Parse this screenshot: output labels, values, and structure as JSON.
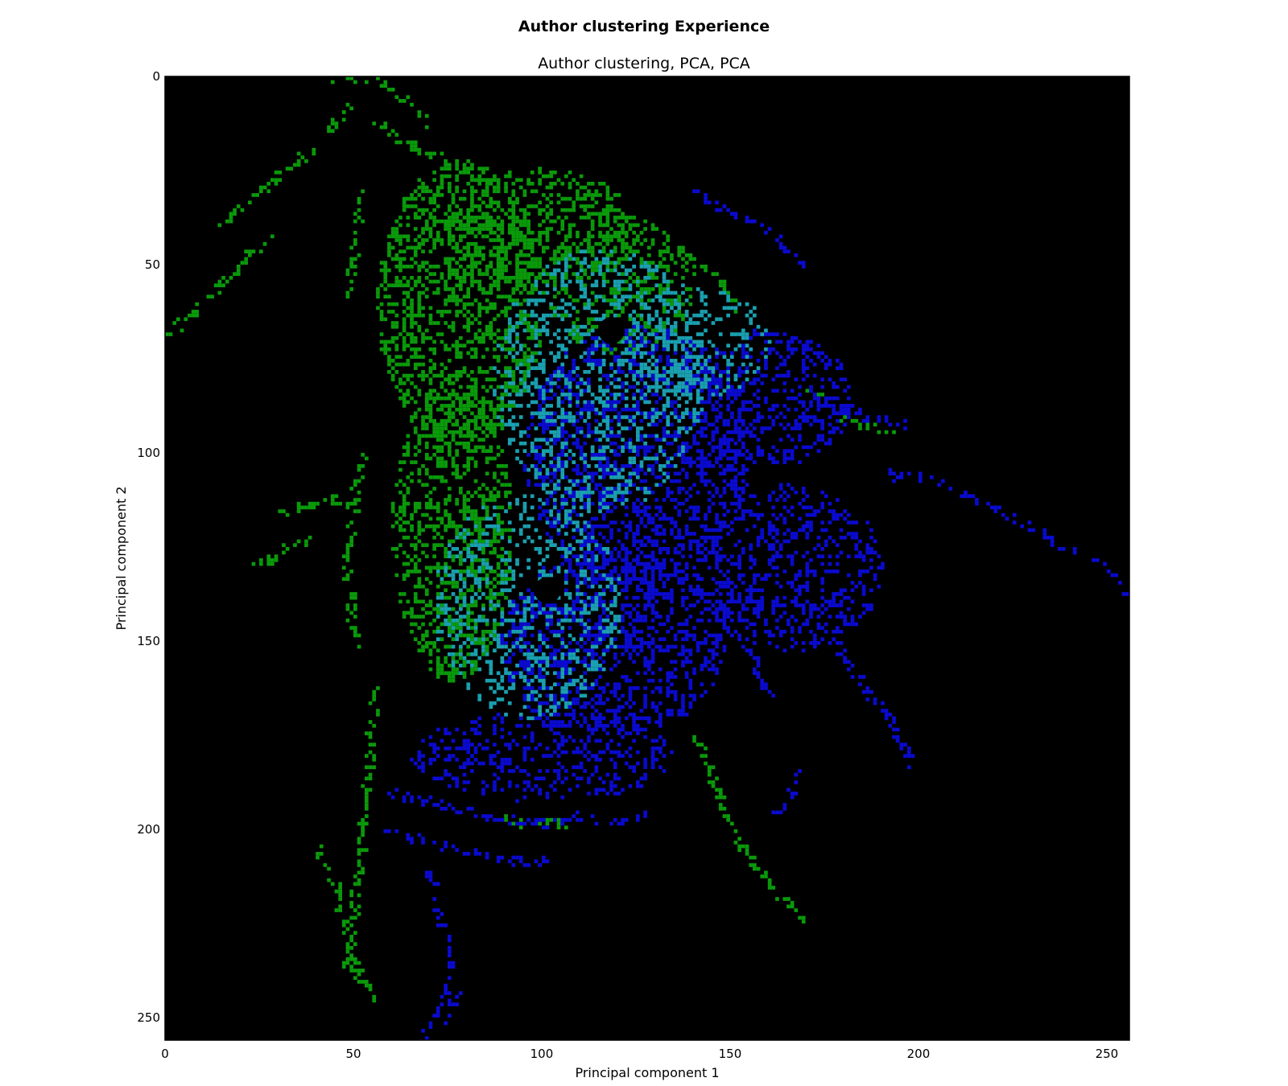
{
  "figure": {
    "suptitle": "Author clustering Experience",
    "title": "Author clustering, PCA, PCA"
  },
  "chart_data": {
    "type": "heatmap",
    "title": "Author clustering, PCA, PCA",
    "xlabel": "Principal component 1",
    "ylabel": "Principal component 2",
    "xlim": [
      0,
      256
    ],
    "ylim": [
      256,
      0
    ],
    "xticks": [
      0,
      50,
      100,
      150,
      200,
      250
    ],
    "yticks": [
      0,
      50,
      100,
      150,
      200,
      250
    ],
    "background_color": "#000000",
    "colors": {
      "green": "#0a9a0a",
      "blue": "#0a0ad0",
      "cyan": "#1aa0b0"
    },
    "description": "",
    "series": [
      {
        "color": "green",
        "blobs": [
          {
            "x": 78,
            "y": 60,
            "rx": 22,
            "ry": 38,
            "density": 0.5
          },
          {
            "x": 76,
            "y": 120,
            "rx": 16,
            "ry": 40,
            "density": 0.45
          },
          {
            "x": 100,
            "y": 40,
            "rx": 25,
            "ry": 16,
            "density": 0.4
          },
          {
            "x": 120,
            "y": 55,
            "rx": 20,
            "ry": 18,
            "density": 0.35
          }
        ],
        "trails": [
          [
            [
              0,
              68
            ],
            [
              8,
              62
            ],
            [
              15,
              55
            ],
            [
              22,
              47
            ],
            [
              28,
              42
            ]
          ],
          [
            [
              15,
              38
            ],
            [
              22,
              32
            ],
            [
              30,
              26
            ],
            [
              38,
              20
            ],
            [
              45,
              12
            ],
            [
              50,
              8
            ]
          ],
          [
            [
              44,
              2
            ],
            [
              48,
              0
            ],
            [
              56,
              0
            ],
            [
              62,
              5
            ],
            [
              70,
              12
            ]
          ],
          [
            [
              56,
              12
            ],
            [
              65,
              18
            ],
            [
              75,
              22
            ],
            [
              85,
              25
            ]
          ],
          [
            [
              52,
              30
            ],
            [
              50,
              45
            ],
            [
              48,
              58
            ]
          ],
          [
            [
              30,
              116
            ],
            [
              38,
              113
            ],
            [
              45,
              112
            ],
            [
              52,
              115
            ]
          ],
          [
            [
              22,
              130
            ],
            [
              28,
              128
            ],
            [
              34,
              124
            ],
            [
              38,
              123
            ]
          ],
          [
            [
              52,
              100
            ],
            [
              50,
              112
            ],
            [
              48,
              130
            ],
            [
              50,
              150
            ]
          ],
          [
            [
              55,
              160
            ],
            [
              54,
              180
            ],
            [
              52,
              200
            ],
            [
              50,
              220
            ],
            [
              48,
              235
            ],
            [
              56,
              245
            ]
          ],
          [
            [
              40,
              205
            ],
            [
              45,
              215
            ],
            [
              48,
              228
            ],
            [
              52,
              240
            ]
          ],
          [
            [
              130,
              40
            ],
            [
              140,
              48
            ],
            [
              148,
              55
            ],
            [
              152,
              62
            ]
          ],
          [
            [
              140,
              175
            ],
            [
              146,
              188
            ],
            [
              150,
              200
            ],
            [
              158,
              212
            ],
            [
              170,
              224
            ]
          ],
          [
            [
              170,
              82
            ],
            [
              180,
              90
            ],
            [
              192,
              95
            ]
          ],
          [
            [
              88,
              196
            ],
            [
              96,
              198
            ],
            [
              106,
              198
            ]
          ]
        ]
      },
      {
        "color": "blue",
        "blobs": [
          {
            "x": 125,
            "y": 100,
            "rx": 30,
            "ry": 35,
            "density": 0.45
          },
          {
            "x": 118,
            "y": 150,
            "rx": 30,
            "ry": 25,
            "density": 0.45
          },
          {
            "x": 160,
            "y": 85,
            "rx": 22,
            "ry": 18,
            "density": 0.35
          },
          {
            "x": 165,
            "y": 130,
            "rx": 25,
            "ry": 22,
            "density": 0.35
          },
          {
            "x": 100,
            "y": 180,
            "rx": 35,
            "ry": 12,
            "density": 0.3
          }
        ],
        "trails": [
          [
            [
              190,
              105
            ],
            [
              205,
              107
            ],
            [
              220,
              115
            ],
            [
              235,
              122
            ],
            [
              248,
              130
            ],
            [
              256,
              138
            ]
          ],
          [
            [
              170,
              140
            ],
            [
              178,
              150
            ],
            [
              184,
              160
            ],
            [
              192,
              170
            ],
            [
              198,
              182
            ]
          ],
          [
            [
              168,
              185
            ],
            [
              165,
              192
            ],
            [
              160,
              198
            ]
          ],
          [
            [
              60,
              190
            ],
            [
              70,
              192
            ],
            [
              80,
              195
            ],
            [
              90,
              197
            ],
            [
              100,
              198
            ],
            [
              110,
              196
            ],
            [
              118,
              198
            ],
            [
              128,
              196
            ]
          ],
          [
            [
              58,
              200
            ],
            [
              70,
              203
            ],
            [
              82,
              206
            ],
            [
              92,
              208
            ],
            [
              102,
              208
            ]
          ],
          [
            [
              70,
              210
            ],
            [
              72,
              222
            ],
            [
              76,
              232
            ],
            [
              74,
              245
            ],
            [
              68,
              255
            ]
          ],
          [
            [
              78,
              243
            ],
            [
              74,
              250
            ]
          ],
          [
            [
              145,
              140
            ],
            [
              155,
              152
            ],
            [
              160,
              165
            ]
          ],
          [
            [
              140,
              30
            ],
            [
              150,
              36
            ],
            [
              160,
              40
            ],
            [
              170,
              50
            ]
          ],
          [
            [
              176,
              85
            ],
            [
              186,
              90
            ],
            [
              196,
              92
            ]
          ]
        ]
      },
      {
        "color": "cyan",
        "blobs": [
          {
            "x": 115,
            "y": 80,
            "rx": 28,
            "ry": 35,
            "density": 0.3
          },
          {
            "x": 96,
            "y": 140,
            "rx": 25,
            "ry": 30,
            "density": 0.28
          },
          {
            "x": 140,
            "y": 70,
            "rx": 20,
            "ry": 15,
            "density": 0.25
          }
        ],
        "trails": []
      }
    ],
    "holes": [
      {
        "x": 118,
        "y": 67,
        "r": 3.5
      },
      {
        "x": 101,
        "y": 136,
        "r": 3.5
      }
    ]
  }
}
